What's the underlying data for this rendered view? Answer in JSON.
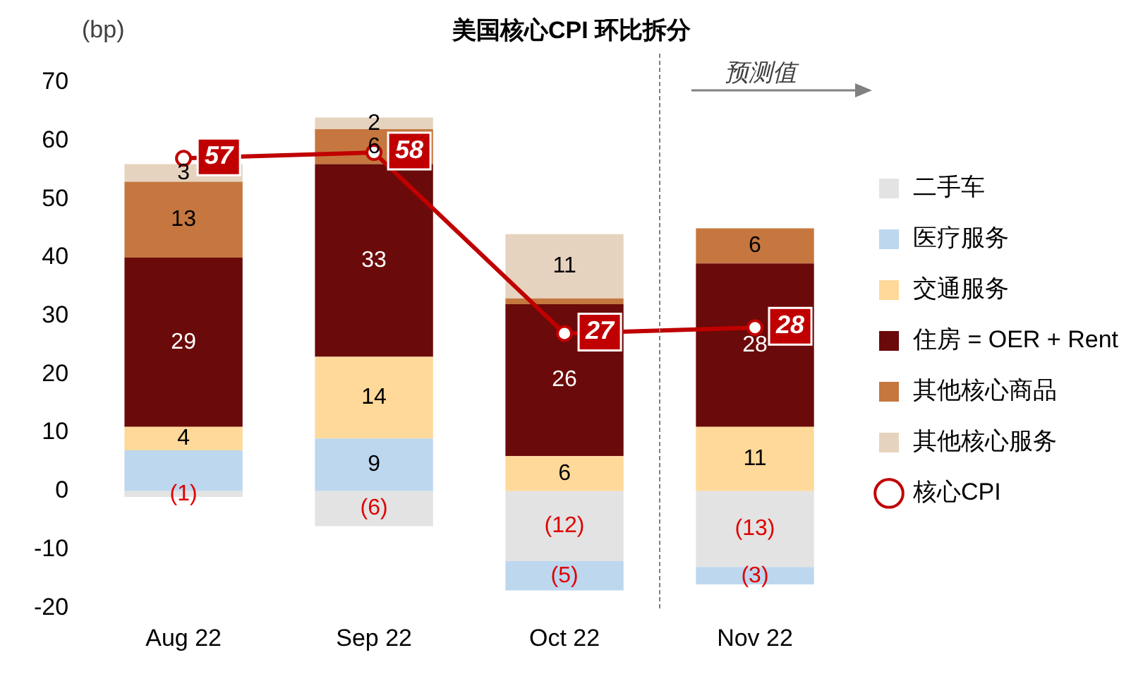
{
  "chart_data": {
    "type": "bar",
    "stacked": true,
    "title": "美国核心CPI 环比拆分",
    "ylabel": "(bp)",
    "categories": [
      "Aug 22",
      "Sep 22",
      "Oct 22",
      "Nov 22"
    ],
    "ylim": [
      -20,
      70
    ],
    "yticks": [
      -20,
      -10,
      0,
      10,
      20,
      30,
      40,
      50,
      60,
      70
    ],
    "grid": false,
    "legend": "right",
    "series": [
      {
        "name": "二手车",
        "color": "#e3e3e3",
        "values": [
          -1,
          -6,
          -12,
          -13
        ],
        "value_labels": [
          "(1)",
          "(6)",
          "(12)",
          "(13)"
        ]
      },
      {
        "name": "医疗服务",
        "color": "#bdd7ee",
        "values": [
          7,
          9,
          -5,
          -3
        ],
        "value_labels": [
          null,
          "9",
          "(5)",
          "(3)"
        ]
      },
      {
        "name": "交通服务",
        "color": "#ffd99a",
        "values": [
          4,
          14,
          6,
          11
        ],
        "value_labels": [
          "4",
          "14",
          "6",
          "11"
        ]
      },
      {
        "name": "住房 = OER + Rent",
        "color": "#6b0a0a",
        "values": [
          29,
          33,
          26,
          28
        ],
        "value_labels": [
          "29",
          "33",
          "26",
          "28"
        ]
      },
      {
        "name": "其他核心商品",
        "color": "#c5773f",
        "values": [
          13,
          6,
          1,
          6
        ],
        "value_labels": [
          "13",
          "6",
          null,
          "6"
        ]
      },
      {
        "name": "其他核心服务",
        "color": "#e6d3bf",
        "values": [
          3,
          2,
          11,
          null
        ],
        "value_labels": [
          "3",
          "2",
          "11",
          null
        ]
      },
      {
        "name": "核心CPI",
        "type": "line",
        "color": "#c00000",
        "marker": "circle",
        "values": [
          57,
          58,
          27,
          28
        ],
        "value_labels": [
          "57",
          "58",
          "27",
          "28"
        ]
      }
    ],
    "annotations": [
      "预测值"
    ]
  }
}
